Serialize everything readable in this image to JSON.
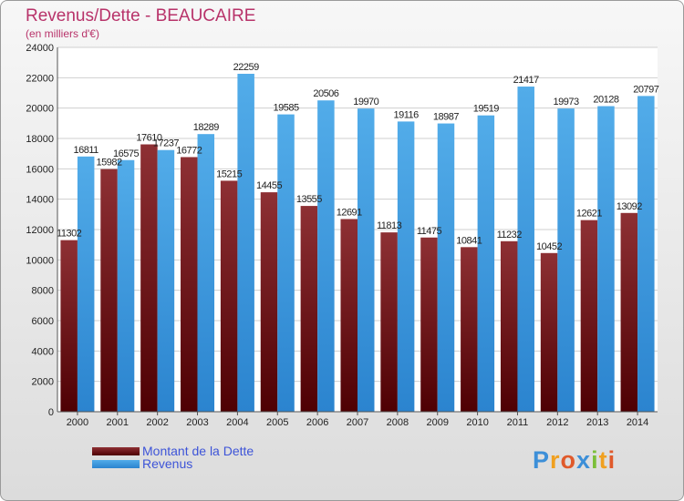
{
  "title": "Revenus/Dette - BEAUCAIRE",
  "subtitle": "(en milliers d'€)",
  "logo": "Proxiti",
  "colors": {
    "dette": "#6b0f14",
    "revenus": "#3c9ae3",
    "title": "#b8336a",
    "legend_text": "#3d54d8"
  },
  "chart_data": {
    "type": "bar",
    "title": "Revenus/Dette - BEAUCAIRE",
    "subtitle": "(en milliers d'€)",
    "xlabel": "",
    "ylabel": "",
    "ylim": [
      0,
      24000
    ],
    "yticks": [
      0,
      2000,
      4000,
      6000,
      8000,
      10000,
      12000,
      14000,
      16000,
      18000,
      20000,
      22000,
      24000
    ],
    "grid": true,
    "legend_position": "bottom-left",
    "categories": [
      "2000",
      "2001",
      "2002",
      "2003",
      "2004",
      "2005",
      "2006",
      "2007",
      "2008",
      "2009",
      "2010",
      "2011",
      "2012",
      "2013",
      "2014"
    ],
    "series": [
      {
        "name": "Montant de la Dette",
        "values": [
          11302,
          15982,
          17610,
          16772,
          15215,
          14455,
          13555,
          12691,
          11813,
          11475,
          10841,
          11232,
          10452,
          12621,
          13092
        ],
        "labels": [
          "11302",
          "15982",
          "17610",
          "16772",
          "15215",
          "14455",
          "13555",
          "12691",
          "11813",
          "11475",
          "10841",
          "11232",
          "10452",
          "12621",
          "13092"
        ]
      },
      {
        "name": "Revenus",
        "values": [
          16811,
          16575,
          17237,
          18289,
          22259,
          19585,
          20506,
          19970,
          19116,
          18987,
          19519,
          21417,
          19973,
          20128,
          20797
        ],
        "labels": [
          "16811",
          "16575",
          "17237",
          "18289",
          "22259",
          "19585",
          "20506",
          "19970",
          "19116",
          "18987",
          "19519",
          "21417",
          "19973",
          "20128",
          "20797"
        ]
      }
    ]
  }
}
